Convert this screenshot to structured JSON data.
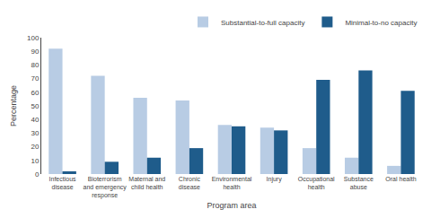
{
  "chart_data": {
    "type": "bar",
    "categories": [
      "Infectious\ndisease",
      "Bioterrorism\nand emergency\nresponse",
      "Maternal and\nchild health",
      "Chronic\ndisease",
      "Environmental\nhealth",
      "Injury",
      "Occupational\nhealth",
      "Substance\nabuse",
      "Oral health"
    ],
    "series": [
      {
        "name": "Substantial-to-full capacity",
        "color": "#b8cce4",
        "values": [
          92,
          72,
          56,
          54,
          36,
          34,
          19,
          12,
          6
        ]
      },
      {
        "name": "Minimal-to-no capacity",
        "color": "#1f5c8b",
        "values": [
          2,
          9,
          12,
          19,
          35,
          32,
          69,
          76,
          61
        ]
      }
    ],
    "xlabel": "Program area",
    "ylabel": "Percentage",
    "ylim": [
      0,
      100
    ],
    "yticks": [
      0,
      10,
      20,
      30,
      40,
      50,
      60,
      70,
      80,
      90,
      100
    ],
    "grid": false,
    "legend": "top"
  }
}
